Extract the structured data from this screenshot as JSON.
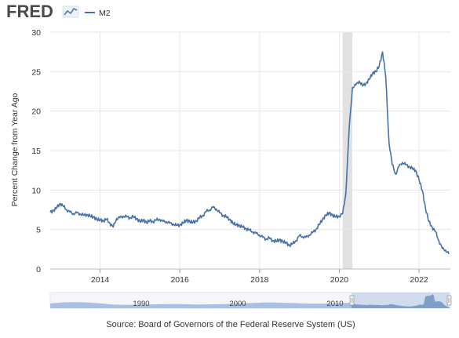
{
  "brand": {
    "name": "FRED"
  },
  "colors": {
    "series_line": "#4572a7",
    "recession": "#e1e1e1",
    "grid": "#e6e6e6",
    "navigator_fill": "#aac0de",
    "navigator_window": "#c9d6ea",
    "brand_text": "#4a4a4a",
    "brand_accent": "#4a79b5"
  },
  "icons": {
    "brand_chart": "mini-line-chart-icon"
  },
  "chart_data": {
    "type": "line",
    "title": "",
    "legend": {
      "placement": "top-left",
      "entries": [
        "M2"
      ]
    },
    "xlabel": "",
    "ylabel": "Percent Change from Year Ago",
    "xlim": [
      "2012-10-01",
      "2022-10-15"
    ],
    "ylim": [
      0,
      30
    ],
    "x_ticks": [
      "2014",
      "2016",
      "2018",
      "2020",
      "2022"
    ],
    "y_ticks": [
      0,
      5,
      10,
      15,
      20,
      25,
      30
    ],
    "grid": true,
    "recessions": [
      {
        "start": "2020-02-01",
        "end": "2020-04-30"
      }
    ],
    "series": [
      {
        "name": "M2",
        "x": [
          "2012-10-01",
          "2012-11-01",
          "2012-12-01",
          "2013-01-01",
          "2013-02-01",
          "2013-03-01",
          "2013-04-01",
          "2013-05-01",
          "2013-06-01",
          "2013-07-01",
          "2013-08-01",
          "2013-09-01",
          "2013-10-01",
          "2013-11-01",
          "2013-12-01",
          "2014-01-01",
          "2014-02-01",
          "2014-03-01",
          "2014-04-01",
          "2014-05-01",
          "2014-06-01",
          "2014-07-01",
          "2014-08-01",
          "2014-09-01",
          "2014-10-01",
          "2014-11-01",
          "2014-12-01",
          "2015-01-01",
          "2015-02-01",
          "2015-03-01",
          "2015-04-01",
          "2015-05-01",
          "2015-06-01",
          "2015-07-01",
          "2015-08-01",
          "2015-09-01",
          "2015-10-01",
          "2015-11-01",
          "2015-12-01",
          "2016-01-01",
          "2016-02-01",
          "2016-03-01",
          "2016-04-01",
          "2016-05-01",
          "2016-06-01",
          "2016-07-01",
          "2016-08-01",
          "2016-09-01",
          "2016-10-01",
          "2016-11-01",
          "2016-12-01",
          "2017-01-01",
          "2017-02-01",
          "2017-03-01",
          "2017-04-01",
          "2017-05-01",
          "2017-06-01",
          "2017-07-01",
          "2017-08-01",
          "2017-09-01",
          "2017-10-01",
          "2017-11-01",
          "2017-12-01",
          "2018-01-01",
          "2018-02-01",
          "2018-03-01",
          "2018-04-01",
          "2018-05-01",
          "2018-06-01",
          "2018-07-01",
          "2018-08-01",
          "2018-09-01",
          "2018-10-01",
          "2018-11-01",
          "2018-12-01",
          "2019-01-01",
          "2019-02-01",
          "2019-03-01",
          "2019-04-01",
          "2019-05-01",
          "2019-06-01",
          "2019-07-01",
          "2019-08-01",
          "2019-09-01",
          "2019-10-01",
          "2019-11-01",
          "2019-12-01",
          "2020-01-01",
          "2020-02-01",
          "2020-03-01",
          "2020-04-01",
          "2020-05-01",
          "2020-06-01",
          "2020-07-01",
          "2020-08-01",
          "2020-09-01",
          "2020-10-01",
          "2020-11-01",
          "2020-12-01",
          "2021-01-01",
          "2021-02-01",
          "2021-03-01",
          "2021-04-01",
          "2021-05-01",
          "2021-06-01",
          "2021-07-01",
          "2021-08-01",
          "2021-09-01",
          "2021-10-01",
          "2021-11-01",
          "2021-12-01",
          "2022-01-01",
          "2022-02-01",
          "2022-03-01",
          "2022-04-01",
          "2022-05-01",
          "2022-06-01",
          "2022-07-01",
          "2022-08-01",
          "2022-09-01",
          "2022-10-01"
        ],
        "values": [
          7.2,
          7.4,
          7.8,
          8.3,
          7.9,
          7.5,
          7.2,
          7.0,
          7.1,
          7.0,
          6.8,
          6.9,
          6.7,
          6.6,
          6.3,
          6.2,
          6.1,
          6.3,
          5.8,
          5.3,
          6.4,
          6.5,
          6.7,
          6.6,
          6.5,
          6.6,
          6.4,
          6.0,
          6.2,
          5.9,
          6.1,
          6.0,
          6.2,
          6.3,
          6.0,
          6.0,
          5.8,
          5.7,
          5.5,
          5.6,
          5.8,
          6.2,
          6.0,
          5.9,
          6.1,
          6.5,
          6.8,
          7.3,
          7.5,
          7.8,
          7.6,
          7.1,
          6.8,
          6.6,
          6.3,
          5.8,
          5.6,
          5.5,
          5.3,
          5.1,
          4.9,
          4.7,
          4.5,
          4.3,
          4.0,
          3.8,
          3.9,
          3.6,
          3.5,
          3.7,
          3.5,
          3.3,
          3.0,
          3.2,
          3.6,
          4.2,
          4.1,
          4.0,
          4.3,
          4.6,
          5.0,
          5.6,
          6.3,
          6.8,
          7.1,
          6.8,
          6.6,
          6.7,
          7.0,
          9.5,
          17.8,
          23.0,
          23.3,
          23.8,
          23.2,
          23.5,
          24.0,
          24.8,
          25.0,
          25.7,
          27.5,
          24.5,
          16.0,
          13.2,
          12.0,
          13.0,
          13.5,
          13.2,
          13.0,
          12.7,
          12.5,
          11.3,
          9.9,
          7.7,
          6.0,
          5.3,
          4.7,
          3.6,
          2.6,
          2.4,
          1.9
        ]
      }
    ]
  },
  "navigator": {
    "labels": [
      "1990",
      "2000",
      "2010"
    ]
  },
  "source": {
    "text": "Source: Board of Governors of the Federal Reserve System (US)"
  }
}
